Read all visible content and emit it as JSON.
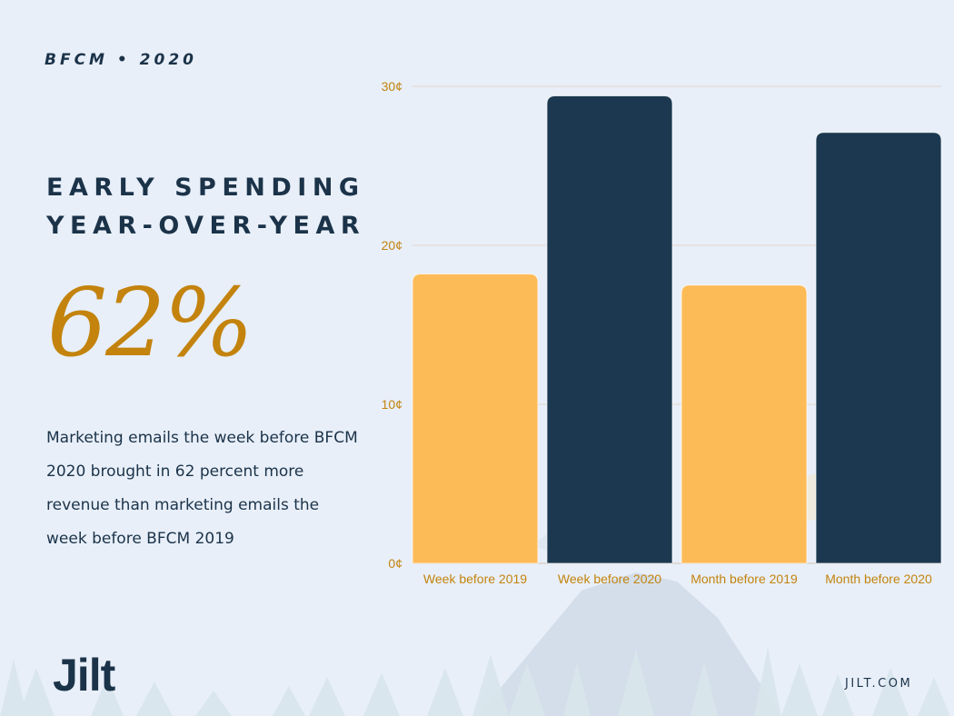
{
  "header": {
    "kicker": "BFCM • 2020",
    "title_line1": "EARLY SPENDING",
    "title_line2": "YEAR-OVER-YEAR"
  },
  "stat": {
    "value": "62%",
    "description": "Marketing emails the week before BFCM 2020 brought in 62 percent more revenue than marketing emails the week before BFCM 2019"
  },
  "footer": {
    "logo_text": "Jilt",
    "site": "JILT.COM"
  },
  "colors": {
    "background": "#e8eff9",
    "navy": "#1b3349",
    "gold": "#c3830d",
    "bar_2019": "#fdbb58",
    "bar_2020": "#1b3850",
    "gridline": "#e2ddd9"
  },
  "chart_data": {
    "type": "bar",
    "title": "",
    "xlabel": "",
    "ylabel": "",
    "categories": [
      "Week before 2019",
      "Week before 2020",
      "Month before 2019",
      "Month before 2020"
    ],
    "values": [
      18.2,
      29.4,
      17.5,
      27.1
    ],
    "bar_colors": [
      "#fdbb58",
      "#1b3850",
      "#fdbb58",
      "#1b3850"
    ],
    "ylim": [
      0,
      30
    ],
    "yticks": [
      0,
      10,
      20,
      30
    ],
    "ytick_labels": [
      "0¢",
      "10¢",
      "20¢",
      "30¢"
    ],
    "grid": true,
    "legend": "none"
  }
}
